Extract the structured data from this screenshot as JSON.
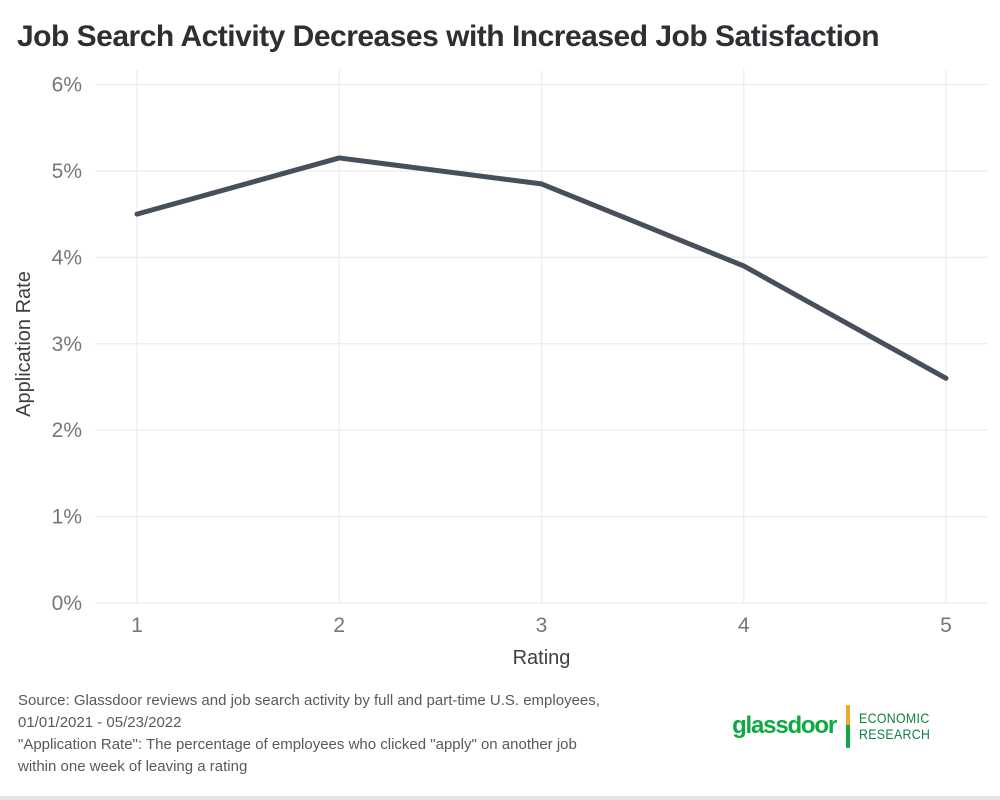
{
  "title": "Job Search Activity Decreases with Increased Job Satisfaction",
  "chart_data": {
    "type": "line",
    "x": [
      1,
      2,
      3,
      4,
      5
    ],
    "series": [
      {
        "name": "Application Rate",
        "values": [
          4.5,
          5.15,
          4.85,
          3.9,
          2.6
        ]
      }
    ],
    "title": "Job Search Activity Decreases with Increased Job Satisfaction",
    "xlabel": "Rating",
    "ylabel": "Application Rate",
    "xlim": [
      1,
      5
    ],
    "ylim": [
      0,
      6
    ],
    "xticks": [
      1,
      2,
      3,
      4,
      5
    ],
    "yticks": [
      0,
      1,
      2,
      3,
      4,
      5,
      6
    ],
    "ytick_suffix": "%",
    "grid": true,
    "legend_position": "none",
    "line_color": "#474F5D",
    "line_width": 5
  },
  "footer": {
    "source_lines": [
      "Source: Glassdoor reviews and job search activity by full and part-time U.S. employees,",
      "01/01/2021 - 05/23/2022",
      "\"Application Rate\": The percentage of employees who clicked \"apply\" on another job",
      "within one week of leaving a rating"
    ]
  },
  "logo": {
    "brand": "glassdoor",
    "unit_lines": [
      "ECONOMIC",
      "RESEARCH"
    ],
    "brand_color": "#0CAA41",
    "unit_color": "#0E8140",
    "divider_top_color": "#F0A829",
    "divider_bottom_color": "#0CAA41"
  },
  "colors": {
    "background": "#FFFFFF",
    "title": "#2E2F33",
    "grid": "#EDEDED",
    "tick_label": "#767676",
    "axis_label": "#3F3F3F",
    "source_text": "#595959",
    "page_edge": "#E6E6E6"
  }
}
